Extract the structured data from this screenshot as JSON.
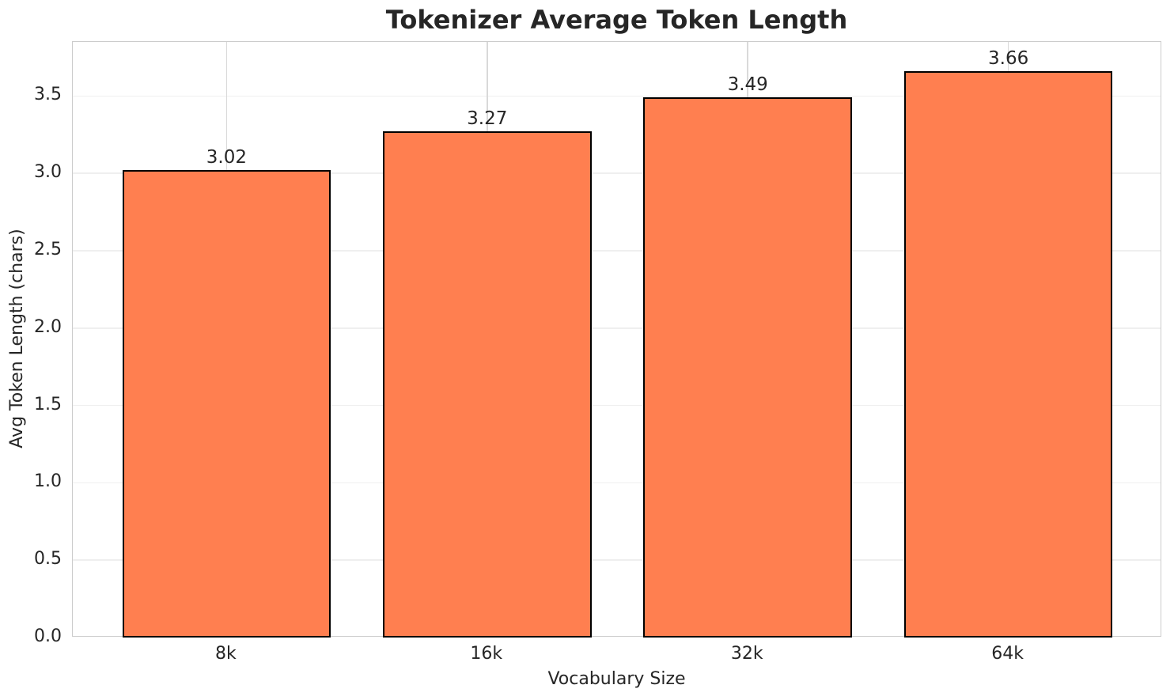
{
  "chart_data": {
    "type": "bar",
    "title": "Tokenizer Average Token Length",
    "xlabel": "Vocabulary Size",
    "ylabel": "Avg Token Length (chars)",
    "categories": [
      "8k",
      "16k",
      "32k",
      "64k"
    ],
    "values": [
      3.02,
      3.27,
      3.49,
      3.66
    ],
    "bar_value_labels": [
      "3.02",
      "3.27",
      "3.49",
      "3.66"
    ],
    "ylim": [
      0,
      3.85
    ],
    "yticks": [
      0,
      0.5,
      1,
      1.5,
      2,
      2.5,
      3,
      3.5
    ],
    "ytick_labels": [
      "0.0",
      "0.5",
      "1.0",
      "1.5",
      "2.0",
      "2.5",
      "3.0",
      "3.5"
    ],
    "grid": "both",
    "legend": "none",
    "colors": {
      "bar_fill": "#FF7F50",
      "bar_edge": "#000000",
      "grid_horizontal": "#efefef",
      "grid_vertical": "#d9d9d9",
      "spine": "#cccccc",
      "text": "#262626",
      "background": "#ffffff"
    }
  }
}
